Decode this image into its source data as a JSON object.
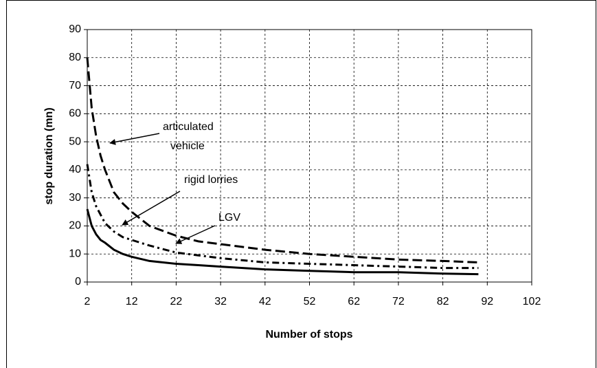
{
  "chart_data": {
    "type": "line",
    "xlabel": "Number of stops",
    "ylabel": "stop duration (mn)",
    "x": [
      2,
      3,
      4,
      5,
      6,
      8,
      10,
      12,
      16,
      22,
      27,
      32,
      42,
      52,
      62,
      72,
      82,
      90
    ],
    "series": [
      {
        "color": "#000000",
        "style": "dash",
        "values": [
          80,
          62,
          52,
          45,
          40,
          32,
          28,
          25,
          20,
          16.5,
          14.5,
          13.5,
          11.5,
          10,
          9,
          8,
          7.5,
          7
        ]
      },
      {
        "color": "#000000",
        "style": "dashdot",
        "values": [
          42,
          32,
          27,
          24,
          21,
          18,
          16,
          15,
          13,
          10.5,
          9.5,
          8.5,
          7,
          6.5,
          6,
          5.5,
          5,
          5
        ]
      },
      {
        "color": "#000000",
        "style": "solid",
        "values": [
          26,
          20,
          17,
          15,
          14,
          11.5,
          10,
          9,
          7.5,
          6.5,
          6,
          5.5,
          4.5,
          4,
          3.5,
          3.5,
          3,
          2.8
        ]
      }
    ],
    "annotations": [
      "articulated",
      "vehicle",
      "rigid lorries",
      "LGV"
    ],
    "xlim": [
      2,
      102
    ],
    "xticks": [
      2,
      12,
      22,
      32,
      42,
      52,
      62,
      72,
      82,
      92,
      102
    ],
    "ylim": [
      0,
      90
    ],
    "yticks": [
      0,
      10,
      20,
      30,
      40,
      50,
      60,
      70,
      80,
      90
    ],
    "grid": true
  }
}
